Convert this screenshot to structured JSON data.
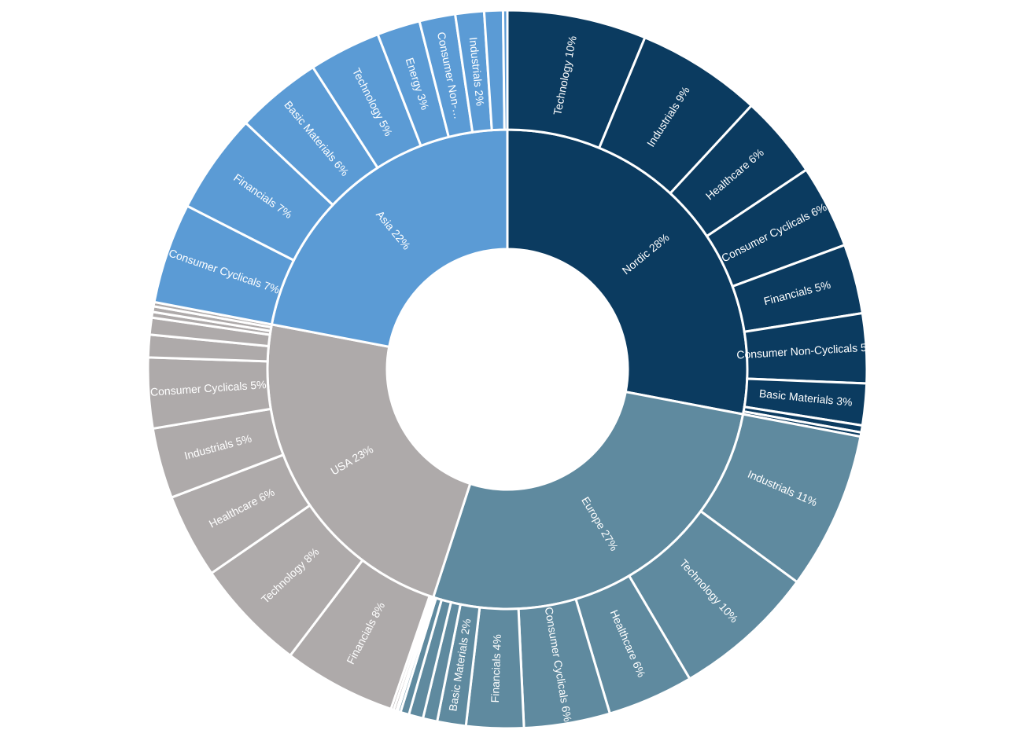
{
  "chart_data": {
    "type": "sunburst",
    "groups": [
      {
        "label": "Nordic 28%",
        "value": 28,
        "color": "#0b3b60",
        "children": [
          {
            "label": "Technology 10%",
            "value": 10
          },
          {
            "label": "Industrials 9%",
            "value": 9
          },
          {
            "label": "Healthcare 6%",
            "value": 6
          },
          {
            "label": "Consumer Cyclicals 6%",
            "value": 6
          },
          {
            "label": "Financials 5%",
            "value": 5
          },
          {
            "label": "Consumer Non-Cyclicals 5%",
            "value": 5
          },
          {
            "label": "Basic Materials 3%",
            "value": 3
          },
          {
            "label": null,
            "value": 0.5
          },
          {
            "label": null,
            "value": 0.3
          }
        ]
      },
      {
        "label": "Europe 27%",
        "value": 27,
        "color": "#5f8a9f",
        "children": [
          {
            "label": "Industrials 11%",
            "value": 11
          },
          {
            "label": "Technology 10%",
            "value": 10
          },
          {
            "label": "Healthcare 6%",
            "value": 6
          },
          {
            "label": "Consumer Cyclicals 6%",
            "value": 6
          },
          {
            "label": "Financials 4%",
            "value": 4
          },
          {
            "label": "Basic Materials 2%",
            "value": 2
          },
          {
            "label": null,
            "value": 1
          },
          {
            "label": null,
            "value": 1
          },
          {
            "label": null,
            "value": 0.6
          },
          {
            "label": null,
            "value": 0.2
          },
          {
            "label": null,
            "value": 0.1
          }
        ]
      },
      {
        "label": "USA 23%",
        "value": 23,
        "color": "#aeaaaa",
        "children": [
          {
            "label": null,
            "value": 0.2
          },
          {
            "label": null,
            "value": 0.2
          },
          {
            "label": "Financials 8%",
            "value": 8
          },
          {
            "label": "Technology 8%",
            "value": 8
          },
          {
            "label": "Healthcare 6%",
            "value": 6
          },
          {
            "label": "Industrials 5%",
            "value": 5
          },
          {
            "label": "Consumer Cyclicals 5%",
            "value": 5
          },
          {
            "label": null,
            "value": 1.6
          },
          {
            "label": null,
            "value": 1.2
          },
          {
            "label": null,
            "value": 0.4
          },
          {
            "label": null,
            "value": 0.4
          },
          {
            "label": null,
            "value": 0.3
          }
        ]
      },
      {
        "label": "Asia 22%",
        "value": 22,
        "color": "#5b9bd5",
        "children": [
          {
            "label": "Consumer Cyclicals 7%",
            "value": 7
          },
          {
            "label": "Financials 7%",
            "value": 7
          },
          {
            "label": "Basic Materials 6%",
            "value": 6
          },
          {
            "label": "Technology 5%",
            "value": 5
          },
          {
            "label": "Energy 3%",
            "value": 3
          },
          {
            "label": "Consumer Non-…",
            "value": 2.5
          },
          {
            "label": "Industrials 2%",
            "value": 2
          },
          {
            "label": null,
            "value": 1.3
          },
          {
            "label": null,
            "value": 0.3
          }
        ]
      }
    ]
  }
}
